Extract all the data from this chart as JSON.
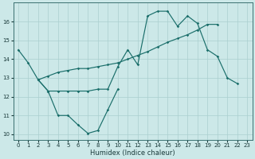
{
  "xlabel": "Humidex (Indice chaleur)",
  "xlim": [
    -0.5,
    23.5
  ],
  "ylim": [
    9.7,
    17.0
  ],
  "yticks": [
    10,
    11,
    12,
    13,
    14,
    15,
    16
  ],
  "xticks": [
    0,
    1,
    2,
    3,
    4,
    5,
    6,
    7,
    8,
    9,
    10,
    11,
    12,
    13,
    14,
    15,
    16,
    17,
    18,
    19,
    20,
    21,
    22,
    23
  ],
  "bg_color": "#cce8e8",
  "grid_color": "#aacfcf",
  "line_color": "#1a6e6a",
  "line1": {
    "x": [
      0,
      1,
      2,
      3,
      4,
      5,
      6,
      7,
      8,
      9,
      10
    ],
    "y": [
      14.5,
      13.8,
      12.9,
      12.3,
      11.0,
      11.0,
      10.5,
      10.05,
      10.2,
      11.3,
      12.4
    ]
  },
  "line2": {
    "x": [
      2,
      3,
      4,
      5,
      6,
      7,
      8,
      9,
      10,
      11,
      12,
      13,
      14,
      15,
      16,
      17,
      18,
      19,
      20,
      21,
      22
    ],
    "y": [
      12.9,
      12.3,
      12.3,
      12.3,
      12.3,
      12.3,
      12.4,
      12.4,
      13.6,
      14.5,
      13.7,
      16.3,
      16.55,
      16.55,
      15.75,
      16.3,
      15.9,
      14.5,
      14.15,
      13.0,
      12.7
    ]
  },
  "line3": {
    "x": [
      2,
      3,
      4,
      5,
      6,
      7,
      8,
      9,
      10,
      11,
      12,
      13,
      14,
      15,
      16,
      17,
      18,
      19,
      20
    ],
    "y": [
      12.9,
      13.1,
      13.3,
      13.4,
      13.5,
      13.5,
      13.6,
      13.7,
      13.8,
      14.0,
      14.2,
      14.4,
      14.65,
      14.9,
      15.1,
      15.3,
      15.55,
      15.85,
      15.85
    ]
  }
}
